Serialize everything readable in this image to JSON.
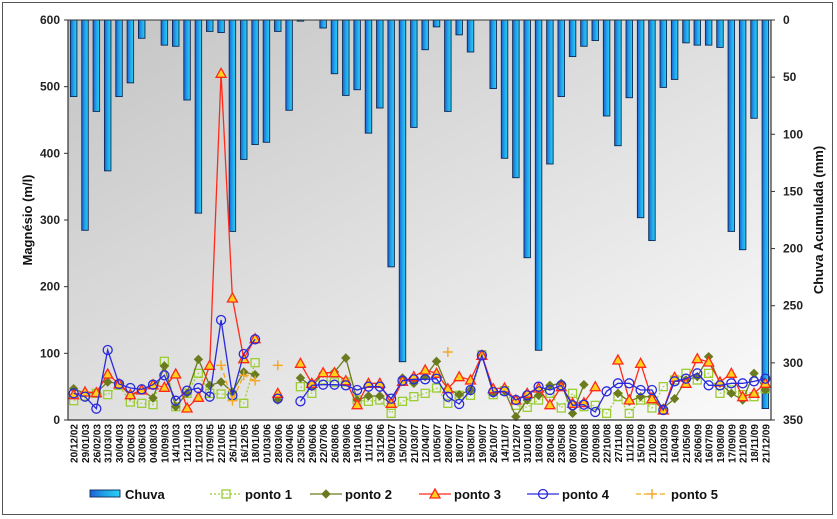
{
  "chart_data": {
    "type": "bar+line",
    "title": "",
    "ylabel": "Magnésio  (m/l)",
    "y2label": "Chuva Acumulada (mm)",
    "ylim": [
      0,
      600
    ],
    "y2lim": [
      350,
      0
    ],
    "yticks": [
      "0",
      "100",
      "200",
      "300",
      "400",
      "500",
      "600"
    ],
    "y2ticks": [
      "0",
      "50",
      "100",
      "150",
      "200",
      "250",
      "300",
      "350"
    ],
    "legend_position": "bottom",
    "categories": [
      "20/12/02",
      "29/01/03",
      "26/02/03",
      "31/03/03",
      "30/04/03",
      "02/06/03",
      "30/06/03",
      "04/08/03",
      "10/09/03",
      "14/10/03",
      "12/11/03",
      "10/12/03",
      "17/09/05",
      "22/10/05",
      "26/11/05",
      "16/12/05",
      "18/01/06",
      "01/03/06",
      "28/03/06",
      "20/04/06",
      "23/05/06",
      "29/06/06",
      "22/07/06",
      "26/08/06",
      "28/09/06",
      "19/10/06",
      "11/11/06",
      "13/12/06",
      "09/01/07",
      "15/02/07",
      "21/03/07",
      "12/04/07",
      "10/05/07",
      "28/06/07",
      "18/07/07",
      "15/08/07",
      "19/09/07",
      "26/10/07",
      "14/11/07",
      "10/12/07",
      "31/01/08",
      "18/03/08",
      "28/04/08",
      "23/05/08",
      "08/07/08",
      "07/08/08",
      "20/09/08",
      "22/10/08",
      "27/11/08",
      "11/12/08",
      "15/01/09",
      "21/02/09",
      "21/03/09",
      "16/04/09",
      "21/05/09",
      "26/06/09",
      "16/07/09",
      "19/08/09",
      "17/09/09",
      "21/10/09",
      "18/11/09",
      "21/12/09"
    ],
    "bar_series": {
      "name": "Chuva",
      "axis": "right",
      "values": [
        67,
        184,
        80,
        132,
        67,
        55,
        16,
        0,
        22,
        23,
        70,
        169,
        10,
        11,
        185,
        122,
        109,
        107,
        10,
        79,
        1,
        0,
        7,
        47,
        66,
        61,
        99,
        77,
        216,
        299,
        94,
        26,
        6,
        80,
        13,
        28,
        0,
        60,
        121,
        138,
        208,
        289,
        126,
        67,
        32,
        23,
        18,
        84,
        110,
        68,
        173,
        193,
        59,
        52,
        20,
        22,
        22,
        24,
        185,
        201,
        86,
        340
      ]
    },
    "series": [
      {
        "name": "ponto 1",
        "color": "#9acd32",
        "values": [
          29,
          36,
          40,
          38,
          52,
          27,
          25,
          23,
          88,
          20,
          40,
          70,
          40,
          39,
          37,
          25,
          86,
          null,
          null,
          null,
          50,
          40,
          60,
          57,
          57,
          30,
          28,
          30,
          10,
          28,
          35,
          40,
          48,
          25,
          37,
          37,
          98,
          38,
          44,
          22,
          19,
          30,
          40,
          18,
          40,
          20,
          22,
          10,
          35,
          10,
          30,
          18,
          50,
          60,
          70,
          60,
          70,
          40,
          45,
          38,
          35,
          47
        ]
      },
      {
        "name": "ponto 2",
        "color": "#6b7b1f",
        "values": [
          47,
          40,
          41,
          57,
          55,
          36,
          45,
          33,
          81,
          20,
          40,
          91,
          52,
          57,
          42,
          72,
          68,
          null,
          30,
          null,
          63,
          50,
          70,
          72,
          93,
          30,
          36,
          36,
          25,
          63,
          55,
          65,
          88,
          47,
          38,
          45,
          97,
          40,
          44,
          5,
          30,
          37,
          52,
          55,
          10,
          53,
          null,
          null,
          40,
          28,
          35,
          35,
          18,
          32,
          60,
          65,
          95,
          55,
          40,
          30,
          70,
          45
        ]
      },
      {
        "name": "ponto 3",
        "color": "#ff2a1a",
        "values": [
          38,
          42,
          41,
          69,
          54,
          38,
          45,
          53,
          49,
          69,
          18,
          34,
          82,
          520,
          183,
          92,
          122,
          null,
          40,
          null,
          85,
          55,
          71,
          71,
          59,
          23,
          55,
          55,
          25,
          58,
          65,
          75,
          70,
          47,
          65,
          60,
          97,
          47,
          48,
          30,
          40,
          48,
          23,
          50,
          25,
          26,
          50,
          null,
          90,
          30,
          85,
          32,
          15,
          64,
          55,
          92,
          87,
          57,
          70,
          35,
          40,
          55
        ]
      },
      {
        "name": "ponto 4",
        "color": "#2a2add",
        "values": [
          40,
          35,
          17,
          105,
          54,
          48,
          46,
          53,
          67,
          29,
          44,
          48,
          35,
          150,
          37,
          99,
          121,
          null,
          32,
          null,
          28,
          52,
          53,
          53,
          52,
          45,
          50,
          50,
          32,
          59,
          61,
          61,
          62,
          35,
          24,
          45,
          97,
          42,
          43,
          30,
          37,
          50,
          45,
          52,
          22,
          23,
          12,
          43,
          55,
          55,
          45,
          45,
          15,
          58,
          62,
          70,
          52,
          52,
          55,
          55,
          58,
          62
        ]
      },
      {
        "name": "ponto 5",
        "color": "#f5a623",
        "values": [
          null,
          null,
          null,
          null,
          null,
          null,
          null,
          null,
          null,
          null,
          null,
          null,
          null,
          82,
          29,
          67,
          59,
          null,
          82,
          null,
          null,
          null,
          null,
          null,
          null,
          null,
          null,
          null,
          null,
          null,
          null,
          null,
          null,
          102,
          null,
          null,
          null,
          null,
          null,
          null,
          null,
          null,
          null,
          null,
          null,
          null,
          null,
          null,
          null,
          null,
          null,
          null,
          null,
          null,
          null,
          null,
          null,
          null,
          null,
          null,
          null,
          null
        ]
      }
    ]
  },
  "legend": [
    {
      "label": "Chuva",
      "kind": "bar"
    },
    {
      "label": "ponto 1",
      "kind": "square"
    },
    {
      "label": "ponto 2",
      "kind": "diamond"
    },
    {
      "label": "ponto 3",
      "kind": "triangle"
    },
    {
      "label": "ponto 4",
      "kind": "circle"
    },
    {
      "label": "ponto 5",
      "kind": "plus"
    }
  ]
}
